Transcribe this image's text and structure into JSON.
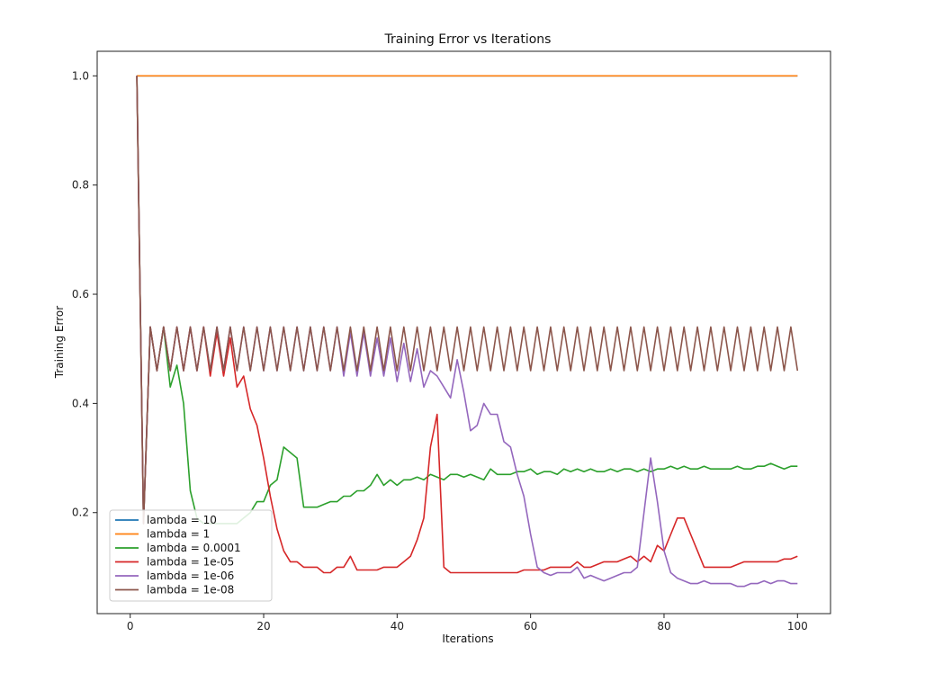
{
  "chart_data": {
    "type": "line",
    "title": "Training Error vs Iterations",
    "xlabel": "Iterations",
    "ylabel": "Training Error",
    "xlim": [
      -4.95,
      104.95
    ],
    "ylim": [
      0.015,
      1.045
    ],
    "xticks": [
      0,
      20,
      40,
      60,
      80,
      100
    ],
    "yticks": [
      0.2,
      0.4,
      0.6,
      0.8,
      1.0
    ],
    "xtick_labels": [
      "0",
      "20",
      "40",
      "60",
      "80",
      "100"
    ],
    "ytick_labels": [
      "0.2",
      "0.4",
      "0.6",
      "0.8",
      "1.0"
    ],
    "grid": false,
    "legend_position": "lower-left",
    "series": [
      {
        "name": "lambda = 10",
        "color": "#1f77b4",
        "x": [
          1,
          100
        ],
        "y": [
          1.0,
          1.0
        ]
      },
      {
        "name": "lambda = 1",
        "color": "#ff7f0e",
        "x": [
          1,
          100
        ],
        "y": [
          1.0,
          1.0
        ]
      },
      {
        "name": "lambda = 0.0001",
        "color": "#2ca02c",
        "x": [
          1,
          2,
          3,
          4,
          5,
          6,
          7,
          8,
          9,
          10,
          11,
          12,
          13,
          14,
          15,
          16,
          17,
          18,
          19,
          20,
          21,
          22,
          23,
          24,
          25,
          26,
          27,
          28,
          29,
          30,
          31,
          32,
          33,
          34,
          35,
          36,
          37,
          38,
          39,
          40,
          41,
          42,
          43,
          44,
          45,
          46,
          47,
          48,
          49,
          50,
          51,
          52,
          53,
          54,
          55,
          56,
          57,
          58,
          59,
          60,
          61,
          62,
          63,
          64,
          65,
          66,
          67,
          68,
          69,
          70,
          71,
          72,
          73,
          74,
          75,
          76,
          77,
          78,
          79,
          80,
          81,
          82,
          83,
          84,
          85,
          86,
          87,
          88,
          89,
          90,
          91,
          92,
          93,
          94,
          95,
          96,
          97,
          98,
          99,
          100
        ],
        "y": [
          1.0,
          0.18,
          0.54,
          0.46,
          0.54,
          0.43,
          0.47,
          0.4,
          0.24,
          0.19,
          0.18,
          0.18,
          0.18,
          0.18,
          0.18,
          0.18,
          0.19,
          0.2,
          0.22,
          0.22,
          0.25,
          0.26,
          0.32,
          0.31,
          0.3,
          0.21,
          0.21,
          0.21,
          0.215,
          0.22,
          0.22,
          0.23,
          0.23,
          0.24,
          0.24,
          0.25,
          0.27,
          0.25,
          0.26,
          0.25,
          0.26,
          0.26,
          0.265,
          0.26,
          0.27,
          0.265,
          0.26,
          0.27,
          0.27,
          0.265,
          0.27,
          0.265,
          0.26,
          0.28,
          0.27,
          0.27,
          0.27,
          0.275,
          0.275,
          0.28,
          0.27,
          0.275,
          0.275,
          0.27,
          0.28,
          0.275,
          0.28,
          0.275,
          0.28,
          0.275,
          0.275,
          0.28,
          0.275,
          0.28,
          0.28,
          0.275,
          0.28,
          0.275,
          0.28,
          0.28,
          0.285,
          0.28,
          0.285,
          0.28,
          0.28,
          0.285,
          0.28,
          0.28,
          0.28,
          0.28,
          0.285,
          0.28,
          0.28,
          0.285,
          0.285,
          0.29,
          0.285,
          0.28,
          0.285,
          0.285
        ]
      },
      {
        "name": "lambda = 1e-05",
        "color": "#d62728",
        "x": [
          1,
          2,
          3,
          4,
          5,
          6,
          7,
          8,
          9,
          10,
          11,
          12,
          13,
          14,
          15,
          16,
          17,
          18,
          19,
          20,
          21,
          22,
          23,
          24,
          25,
          26,
          27,
          28,
          29,
          30,
          31,
          32,
          33,
          34,
          35,
          36,
          37,
          38,
          39,
          40,
          41,
          42,
          43,
          44,
          45,
          46,
          47,
          48,
          49,
          50,
          51,
          52,
          53,
          54,
          55,
          56,
          57,
          58,
          59,
          60,
          61,
          62,
          63,
          64,
          65,
          66,
          67,
          68,
          69,
          70,
          71,
          72,
          73,
          74,
          75,
          76,
          77,
          78,
          79,
          80,
          81,
          82,
          83,
          84,
          85,
          86,
          87,
          88,
          89,
          90,
          91,
          92,
          93,
          94,
          95,
          96,
          97,
          98,
          99,
          100
        ],
        "y": [
          1.0,
          0.18,
          0.54,
          0.46,
          0.54,
          0.46,
          0.54,
          0.46,
          0.54,
          0.46,
          0.54,
          0.45,
          0.53,
          0.45,
          0.52,
          0.43,
          0.45,
          0.39,
          0.36,
          0.3,
          0.23,
          0.17,
          0.13,
          0.11,
          0.11,
          0.1,
          0.1,
          0.1,
          0.09,
          0.09,
          0.1,
          0.1,
          0.12,
          0.095,
          0.095,
          0.095,
          0.095,
          0.1,
          0.1,
          0.1,
          0.11,
          0.12,
          0.15,
          0.19,
          0.32,
          0.38,
          0.1,
          0.09,
          0.09,
          0.09,
          0.09,
          0.09,
          0.09,
          0.09,
          0.09,
          0.09,
          0.09,
          0.09,
          0.095,
          0.095,
          0.095,
          0.095,
          0.1,
          0.1,
          0.1,
          0.1,
          0.11,
          0.1,
          0.1,
          0.105,
          0.11,
          0.11,
          0.11,
          0.115,
          0.12,
          0.11,
          0.12,
          0.11,
          0.14,
          0.13,
          0.16,
          0.19,
          0.19,
          0.16,
          0.13,
          0.1,
          0.1,
          0.1,
          0.1,
          0.1,
          0.105,
          0.11,
          0.11,
          0.11,
          0.11,
          0.11,
          0.11,
          0.115,
          0.115,
          0.12
        ]
      },
      {
        "name": "lambda = 1e-06",
        "color": "#9467bd",
        "x": [
          1,
          2,
          3,
          4,
          5,
          6,
          7,
          8,
          9,
          10,
          11,
          12,
          13,
          14,
          15,
          16,
          17,
          18,
          19,
          20,
          21,
          22,
          23,
          24,
          25,
          26,
          27,
          28,
          29,
          30,
          31,
          32,
          33,
          34,
          35,
          36,
          37,
          38,
          39,
          40,
          41,
          42,
          43,
          44,
          45,
          46,
          47,
          48,
          49,
          50,
          51,
          52,
          53,
          54,
          55,
          56,
          57,
          58,
          59,
          60,
          61,
          62,
          63,
          64,
          65,
          66,
          67,
          68,
          69,
          70,
          71,
          72,
          73,
          74,
          75,
          76,
          77,
          78,
          79,
          80,
          81,
          82,
          83,
          84,
          85,
          86,
          87,
          88,
          89,
          90,
          91,
          92,
          93,
          94,
          95,
          96,
          97,
          98,
          99,
          100
        ],
        "y": [
          1.0,
          0.18,
          0.54,
          0.46,
          0.54,
          0.46,
          0.54,
          0.46,
          0.54,
          0.46,
          0.54,
          0.46,
          0.54,
          0.46,
          0.54,
          0.46,
          0.54,
          0.46,
          0.54,
          0.46,
          0.54,
          0.46,
          0.54,
          0.46,
          0.54,
          0.46,
          0.54,
          0.46,
          0.54,
          0.46,
          0.54,
          0.45,
          0.53,
          0.45,
          0.53,
          0.45,
          0.52,
          0.45,
          0.52,
          0.44,
          0.51,
          0.44,
          0.5,
          0.43,
          0.46,
          0.45,
          0.43,
          0.41,
          0.48,
          0.42,
          0.35,
          0.36,
          0.4,
          0.38,
          0.38,
          0.33,
          0.32,
          0.27,
          0.23,
          0.16,
          0.1,
          0.09,
          0.085,
          0.09,
          0.09,
          0.09,
          0.1,
          0.08,
          0.085,
          0.08,
          0.075,
          0.08,
          0.085,
          0.09,
          0.09,
          0.1,
          0.2,
          0.3,
          0.22,
          0.13,
          0.09,
          0.08,
          0.075,
          0.07,
          0.07,
          0.075,
          0.07,
          0.07,
          0.07,
          0.07,
          0.065,
          0.065,
          0.07,
          0.07,
          0.075,
          0.07,
          0.075,
          0.075,
          0.07,
          0.07
        ]
      },
      {
        "name": "lambda = 1e-08",
        "color": "#8c564b",
        "x": [
          1,
          2,
          3,
          4,
          5,
          6,
          7,
          8,
          9,
          10,
          11,
          12,
          13,
          14,
          15,
          16,
          17,
          18,
          19,
          20,
          21,
          22,
          23,
          24,
          25,
          26,
          27,
          28,
          29,
          30,
          31,
          32,
          33,
          34,
          35,
          36,
          37,
          38,
          39,
          40,
          41,
          42,
          43,
          44,
          45,
          46,
          47,
          48,
          49,
          50,
          51,
          52,
          53,
          54,
          55,
          56,
          57,
          58,
          59,
          60,
          61,
          62,
          63,
          64,
          65,
          66,
          67,
          68,
          69,
          70,
          71,
          72,
          73,
          74,
          75,
          76,
          77,
          78,
          79,
          80,
          81,
          82,
          83,
          84,
          85,
          86,
          87,
          88,
          89,
          90,
          91,
          92,
          93,
          94,
          95,
          96,
          97,
          98,
          99,
          100
        ],
        "y": [
          1.0,
          0.18,
          0.54,
          0.46,
          0.54,
          0.46,
          0.54,
          0.46,
          0.54,
          0.46,
          0.54,
          0.46,
          0.54,
          0.46,
          0.54,
          0.46,
          0.54,
          0.46,
          0.54,
          0.46,
          0.54,
          0.46,
          0.54,
          0.46,
          0.54,
          0.46,
          0.54,
          0.46,
          0.54,
          0.46,
          0.54,
          0.46,
          0.54,
          0.46,
          0.54,
          0.46,
          0.54,
          0.46,
          0.54,
          0.46,
          0.54,
          0.46,
          0.54,
          0.46,
          0.54,
          0.46,
          0.54,
          0.46,
          0.54,
          0.46,
          0.54,
          0.46,
          0.54,
          0.46,
          0.54,
          0.46,
          0.54,
          0.46,
          0.54,
          0.46,
          0.54,
          0.46,
          0.54,
          0.46,
          0.54,
          0.46,
          0.54,
          0.46,
          0.54,
          0.46,
          0.54,
          0.46,
          0.54,
          0.46,
          0.54,
          0.46,
          0.54,
          0.46,
          0.54,
          0.46,
          0.54,
          0.46,
          0.54,
          0.46,
          0.54,
          0.46,
          0.54,
          0.46,
          0.54,
          0.46,
          0.54,
          0.46,
          0.54,
          0.46,
          0.54,
          0.46,
          0.54,
          0.46,
          0.54,
          0.46
        ]
      }
    ]
  }
}
